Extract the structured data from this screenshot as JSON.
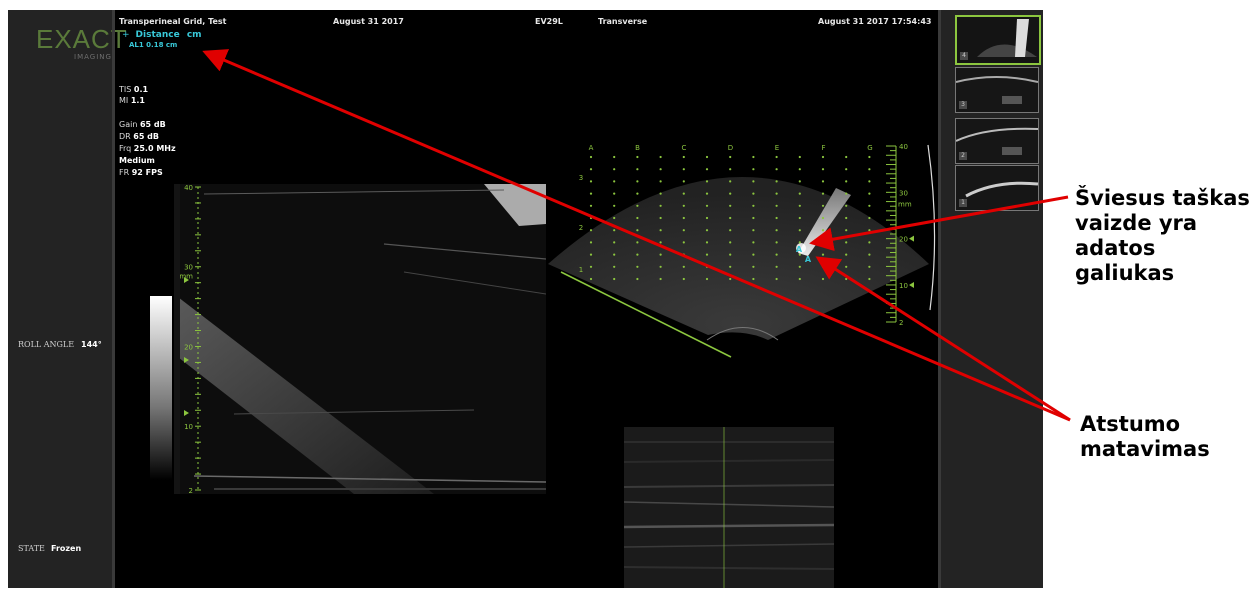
{
  "left_panel": {
    "logo": "EXACT",
    "logo_sub": "IMAGING",
    "roll_angle_label": "ROLL ANGLE",
    "roll_angle_value": "144°",
    "state_label": "STATE",
    "state_value": "Frozen"
  },
  "header": {
    "study": "Transperineal Grid, Test",
    "date": "August 31 2017",
    "probe": "EV29L",
    "plane": "Transverse",
    "datetime": "August 31 2017 17:54:43"
  },
  "measurement": {
    "title": "Distance",
    "unit": "cm",
    "value": "AL1 0.18 cm",
    "marker": "A"
  },
  "settings": {
    "tis_label": "TIS",
    "tis_value": "0.1",
    "mi_label": "MI",
    "mi_value": "1.1",
    "gain_label": "Gain",
    "gain_value": "65 dB",
    "dr_label": "DR",
    "dr_value": "65 dB",
    "frq_label": "Frq",
    "frq_value": "25.0 MHz",
    "mode": "Medium",
    "fr_label": "FR",
    "fr_value": "92 FPS"
  },
  "long_scale": {
    "unit": "mm",
    "ticks": [
      "40",
      "30",
      "20",
      "10",
      "2"
    ]
  },
  "sector_scale": {
    "unit": "mm",
    "ticks": [
      "40",
      "30",
      "20",
      "10",
      "2"
    ]
  },
  "grid": {
    "columns": [
      "A",
      "B",
      "C",
      "D",
      "E",
      "F",
      "G"
    ],
    "rows": [
      "3",
      "2",
      "1"
    ]
  },
  "thumbnails": [
    {
      "number": "4",
      "active": true
    },
    {
      "number": "3",
      "active": false
    },
    {
      "number": "2",
      "active": false
    },
    {
      "number": "1",
      "active": false
    }
  ],
  "callouts": {
    "needle_tip": [
      "Šviesus taškas",
      "vaizde yra",
      "adatos",
      "galiukas"
    ],
    "distance": [
      "Atstumo",
      "matavimas"
    ]
  },
  "colors": {
    "grid_green": "#8cc63f",
    "measure_cyan": "#38c8d8",
    "arrow_red": "#e00000"
  }
}
